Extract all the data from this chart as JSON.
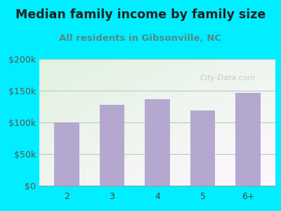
{
  "title": "Median family income by family size",
  "subtitle": "All residents in Gibsonville, NC",
  "categories": [
    "2",
    "3",
    "4",
    "5",
    "6+"
  ],
  "values": [
    100000,
    128000,
    137000,
    119000,
    147000
  ],
  "bar_color": "#b5a8d0",
  "ylim": [
    0,
    200000
  ],
  "yticks": [
    0,
    50000,
    100000,
    150000,
    200000
  ],
  "ytick_labels": [
    "$0",
    "$50k",
    "$100k",
    "$150k",
    "$200k"
  ],
  "background_outer": "#00eeff",
  "title_color": "#222222",
  "subtitle_color": "#558888",
  "watermark": "City-Data.com",
  "title_fontsize": 12.5,
  "subtitle_fontsize": 9.5,
  "tick_label_fontsize": 9,
  "grid_color": "#bbccbb",
  "grid_linewidth": 0.8
}
